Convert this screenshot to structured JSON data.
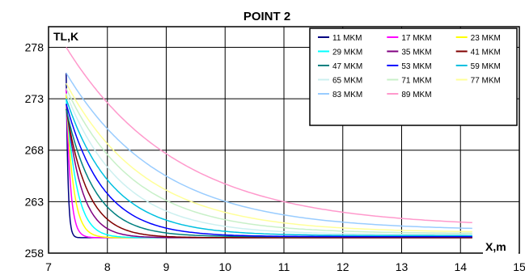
{
  "chart_data": {
    "type": "line",
    "title": "POINT 2",
    "xlabel": "X,m",
    "ylabel": "TL,K",
    "xlim": [
      7,
      15
    ],
    "ylim": [
      258,
      280
    ],
    "xticks": [
      7,
      8,
      9,
      10,
      11,
      12,
      13,
      14,
      15
    ],
    "xtick_labels": [
      "7",
      "8",
      "9",
      "10",
      "11",
      "12",
      "13",
      "14",
      "15"
    ],
    "yticks": [
      258,
      263,
      268,
      273,
      278
    ],
    "ytick_labels": [
      "258",
      "263",
      "268",
      "273",
      "278"
    ],
    "grid": true,
    "legend_position": "top-right",
    "legend_columns": 3,
    "x_start": 7.3,
    "x_end": 14.2,
    "series": [
      {
        "name": "11 MKM",
        "color": "#000080",
        "start": 275.5,
        "final": 259.5,
        "decay": 0.03
      },
      {
        "name": "17 MKM",
        "color": "#ff00ff",
        "start": 274.0,
        "final": 259.5,
        "decay": 0.07
      },
      {
        "name": "23 MKM",
        "color": "#ffff00",
        "start": 273.5,
        "final": 259.5,
        "decay": 0.12
      },
      {
        "name": "29 MKM",
        "color": "#00ffff",
        "start": 273.0,
        "final": 259.5,
        "decay": 0.18
      },
      {
        "name": "35 MKM",
        "color": "#800080",
        "start": 272.5,
        "final": 259.5,
        "decay": 0.26
      },
      {
        "name": "41 MKM",
        "color": "#800000",
        "start": 272.0,
        "final": 259.5,
        "decay": 0.36
      },
      {
        "name": "47 MKM",
        "color": "#008080",
        "start": 272.0,
        "final": 259.6,
        "decay": 0.48
      },
      {
        "name": "53 MKM",
        "color": "#0000ff",
        "start": 272.5,
        "final": 259.6,
        "decay": 0.62
      },
      {
        "name": "59 MKM",
        "color": "#00c0e0",
        "start": 273.0,
        "final": 259.7,
        "decay": 0.78
      },
      {
        "name": "65 MKM",
        "color": "#ccf0f0",
        "start": 273.5,
        "final": 259.8,
        "decay": 0.95
      },
      {
        "name": "71 MKM",
        "color": "#c8f0c8",
        "start": 274.0,
        "final": 259.9,
        "decay": 1.15
      },
      {
        "name": "77 MKM",
        "color": "#ffff99",
        "start": 274.5,
        "final": 260.0,
        "decay": 1.35
      },
      {
        "name": "83 MKM",
        "color": "#99ccff",
        "start": 275.5,
        "final": 260.2,
        "decay": 1.6
      },
      {
        "name": "89 MKM",
        "color": "#ff99cc",
        "start": 278.0,
        "final": 260.5,
        "decay": 1.9
      }
    ]
  }
}
